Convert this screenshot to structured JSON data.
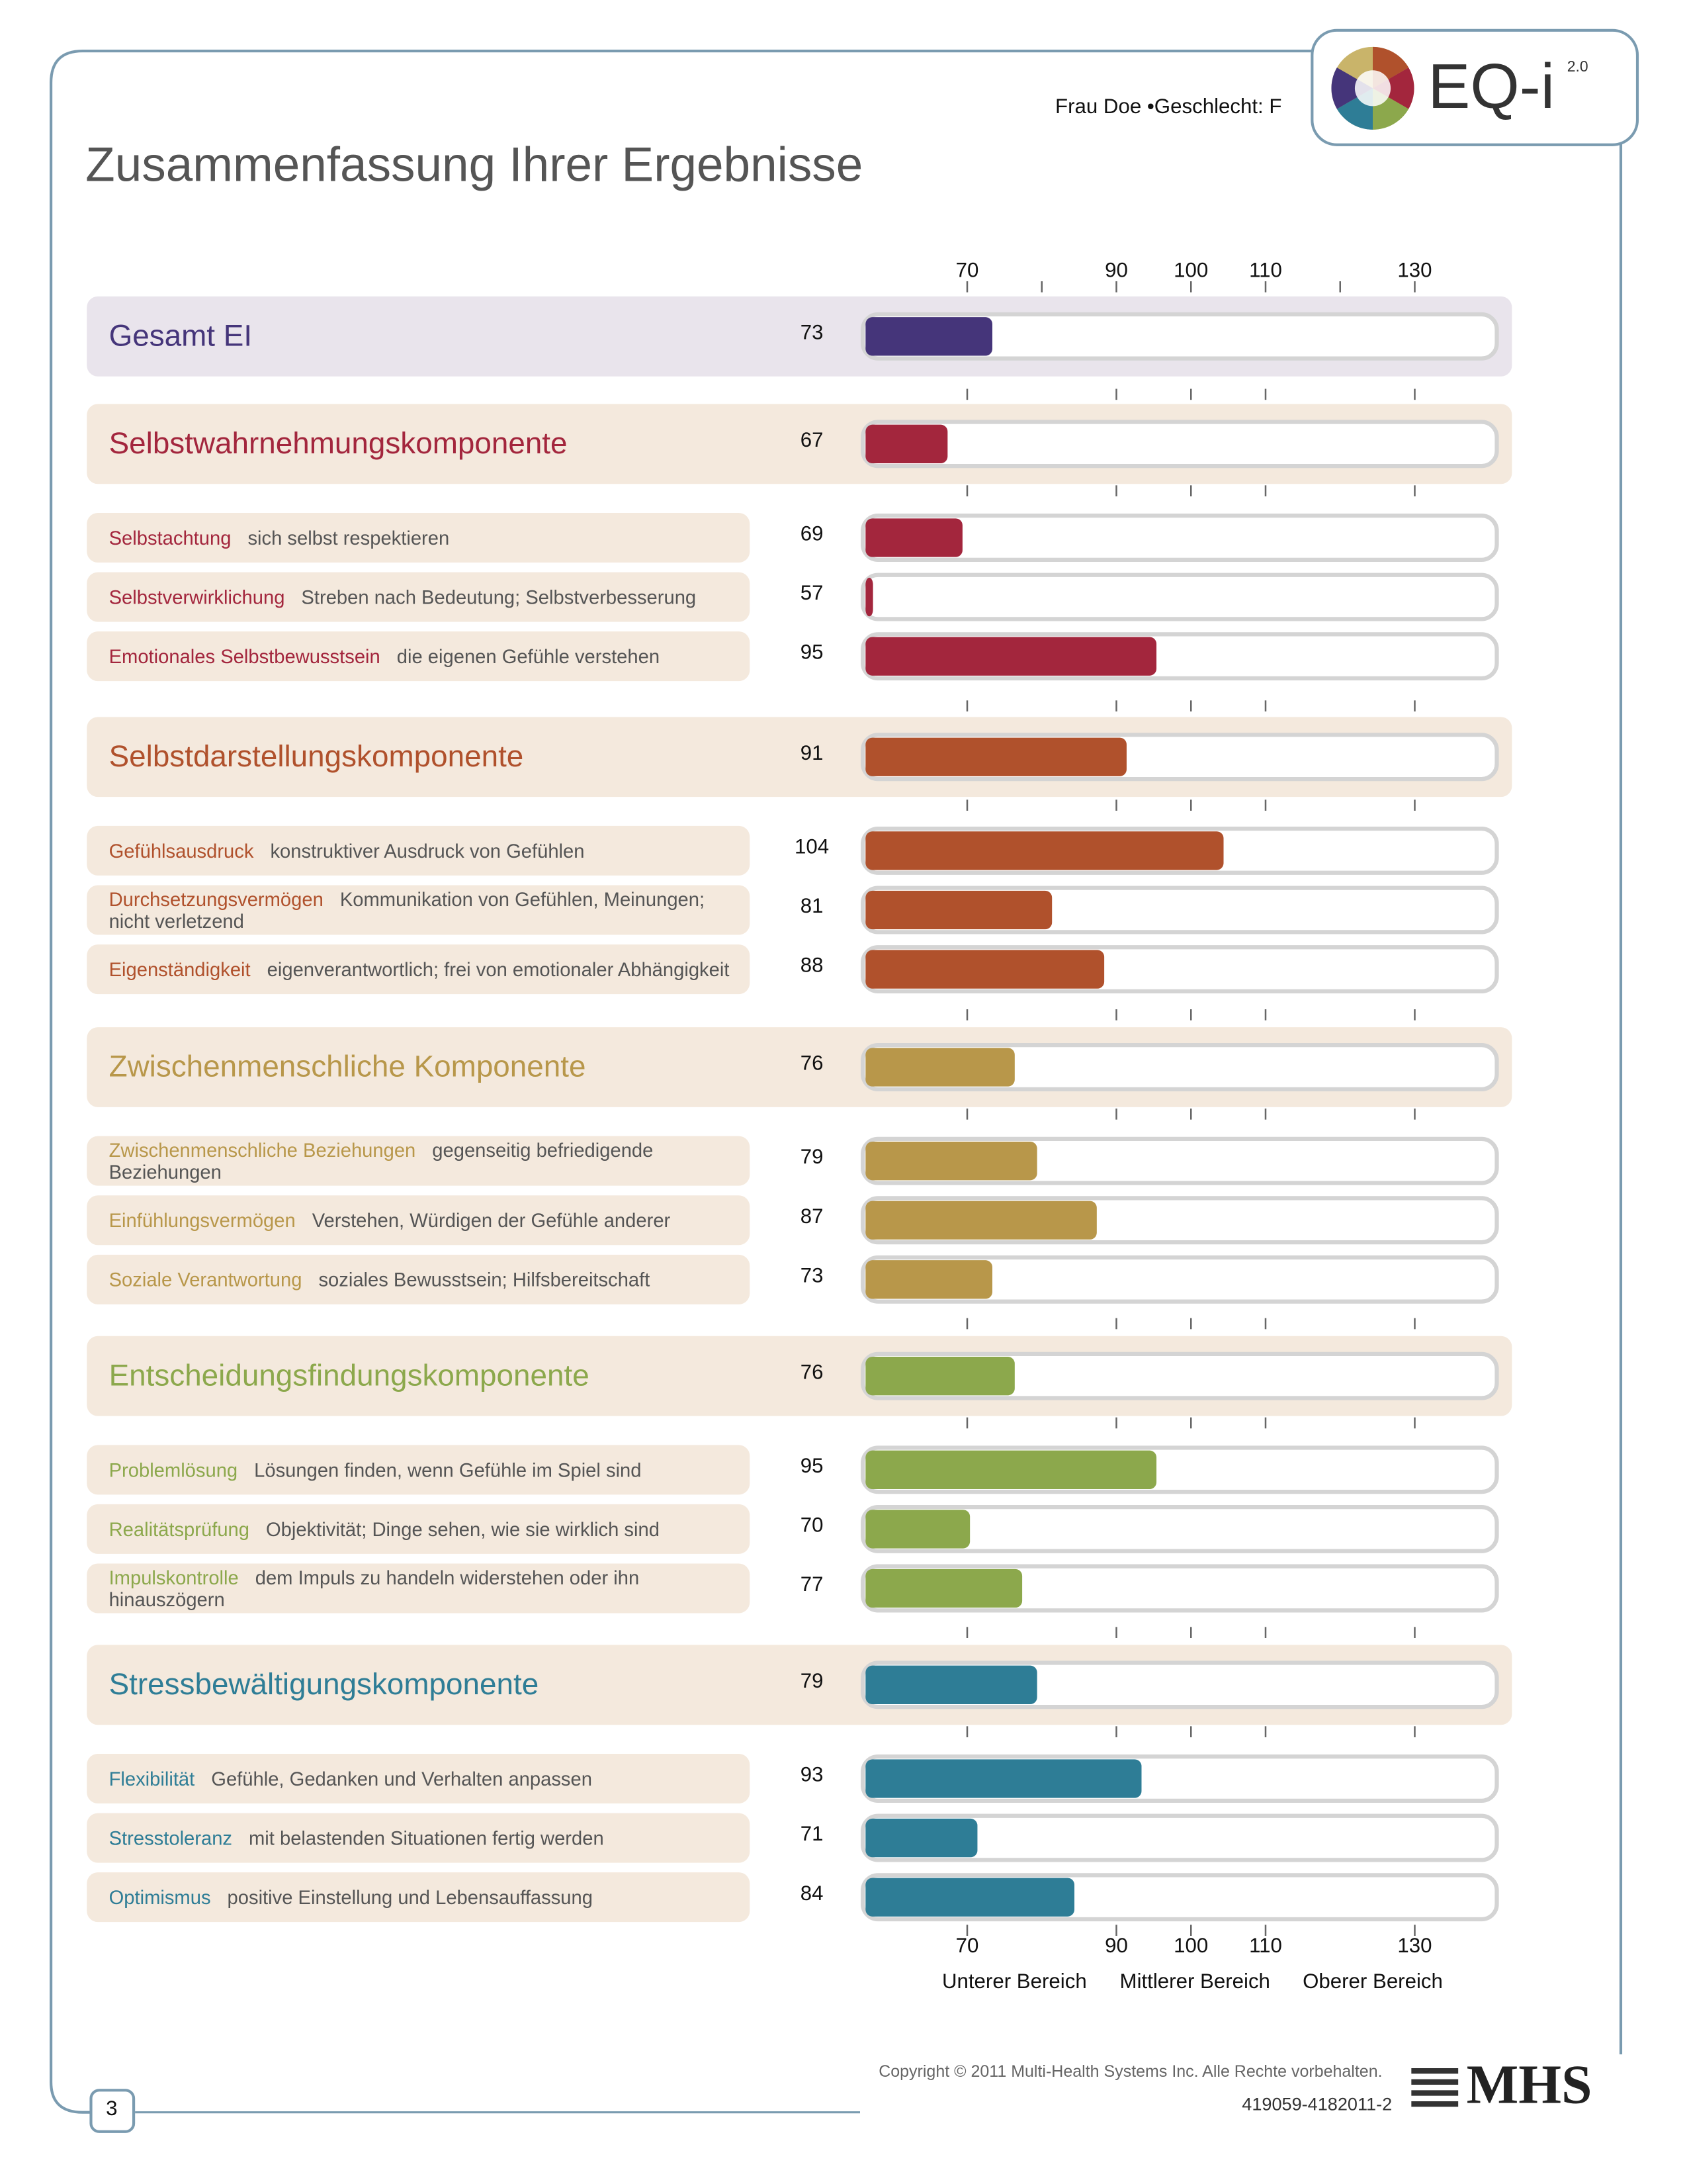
{
  "header": {
    "person": "Frau Doe •Geschlecht: F",
    "logo": "EQ-i",
    "logo_version": "2.0"
  },
  "title": "Zusammenfassung Ihrer Ergebnisse",
  "chart_data": {
    "type": "bar",
    "orientation": "horizontal",
    "xlim": [
      56,
      141
    ],
    "xticks": [
      70,
      90,
      100,
      110,
      130
    ],
    "minor_ticks": [
      80,
      120
    ],
    "range_labels": [
      "Unterer Bereich",
      "Mittlerer Bereich",
      "Oberer Bereich"
    ],
    "overall": {
      "name": "Gesamt EI",
      "value": 73,
      "color": "#45357a"
    },
    "groups": [
      {
        "name": "Selbstwahrnehmungskomponente",
        "value": 67,
        "color": "#a3263d",
        "items": [
          {
            "name": "Selbstachtung",
            "description": "sich selbst respektieren",
            "value": 69
          },
          {
            "name": "Selbstverwirklichung",
            "description": "Streben nach Bedeutung; Selbstverbesserung",
            "value": 57
          },
          {
            "name": "Emotionales Selbstbewusstsein",
            "description": "die eigenen Gefühle verstehen",
            "value": 95
          }
        ]
      },
      {
        "name": "Selbstdarstellungskomponente",
        "value": 91,
        "color": "#b0512c",
        "items": [
          {
            "name": "Gefühlsausdruck",
            "description": "konstruktiver Ausdruck von Gefühlen",
            "value": 104
          },
          {
            "name": "Durchsetzungsvermögen",
            "description": "Kommunikation von Gefühlen, Meinungen; nicht verletzend",
            "value": 81
          },
          {
            "name": "Eigenständigkeit",
            "description": "eigenverantwortlich; frei von emotionaler Abhängigkeit",
            "value": 88
          }
        ]
      },
      {
        "name": "Zwischenmenschliche Komponente",
        "value": 76,
        "color": "#b8974a",
        "items": [
          {
            "name": "Zwischenmenschliche Beziehungen",
            "description": "gegenseitig befriedigende Beziehungen",
            "value": 79
          },
          {
            "name": "Einfühlungsvermögen",
            "description": "Verstehen, Würdigen der Gefühle anderer",
            "value": 87
          },
          {
            "name": "Soziale Verantwortung",
            "description": "soziales Bewusstsein; Hilfsbereitschaft",
            "value": 73
          }
        ]
      },
      {
        "name": "Entscheidungsfindungskomponente",
        "value": 76,
        "color": "#8ca84c",
        "items": [
          {
            "name": "Problemlösung",
            "description": "Lösungen finden, wenn Gefühle im Spiel sind",
            "value": 95
          },
          {
            "name": "Realitätsprüfung",
            "description": "Objektivität; Dinge sehen, wie sie wirklich sind",
            "value": 70
          },
          {
            "name": "Impulskontrolle",
            "description": "dem Impuls zu handeln widerstehen oder ihn hinauszögern",
            "value": 77
          }
        ]
      },
      {
        "name": "Stressbewältigungskomponente",
        "value": 79,
        "color": "#2e7d96",
        "items": [
          {
            "name": "Flexibilität",
            "description": "Gefühle, Gedanken und Verhalten anpassen",
            "value": 93
          },
          {
            "name": "Stresstoleranz",
            "description": "mit belastenden Situationen fertig werden",
            "value": 71
          },
          {
            "name": "Optimismus",
            "description": "positive Einstellung und Lebensauffassung",
            "value": 84
          }
        ]
      }
    ]
  },
  "footer": {
    "copyright": "Copyright © 2011 Multi-Health Systems Inc. Alle Rechte vorbehalten.",
    "code": "419059-4182011-2",
    "brand": "MHS",
    "page": "3"
  }
}
